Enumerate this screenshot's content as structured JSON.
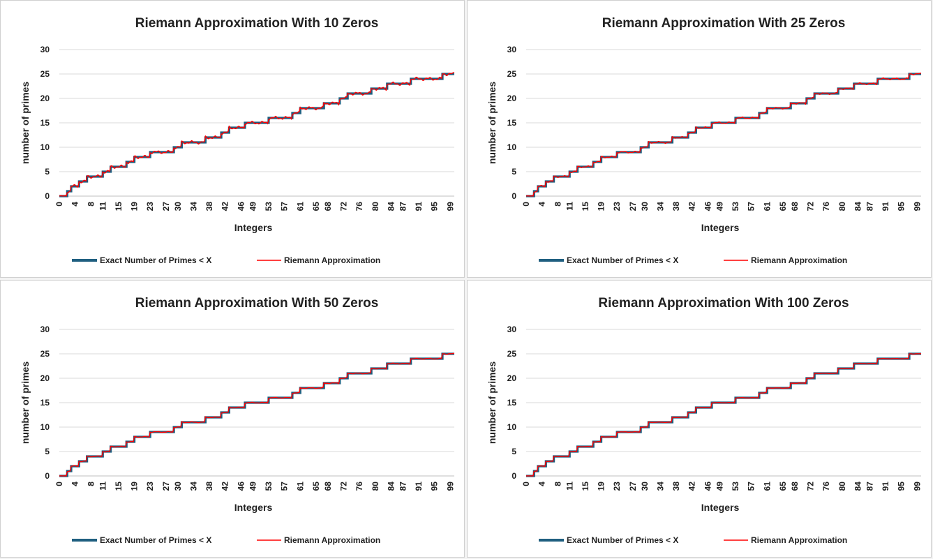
{
  "chart_data": [
    {
      "type": "line",
      "title": "Riemann Approximation With 10 Zeros",
      "xlabel": "Integers",
      "ylabel": "number of primes",
      "ylim": [
        0,
        30
      ],
      "yticks": [
        "0",
        "5",
        "10",
        "15",
        "20",
        "25",
        "30"
      ],
      "xlim": [
        0,
        100
      ],
      "xtick_labels": [
        "0",
        "4",
        "8",
        "11",
        "15",
        "19",
        "23",
        "27",
        "30",
        "34",
        "38",
        "42",
        "46",
        "49",
        "53",
        "57",
        "61",
        "65",
        "68",
        "72",
        "76",
        "80",
        "84",
        "87",
        "91",
        "95",
        "99"
      ],
      "grid": "horizontal",
      "legend_position": "bottom",
      "prime_x": [
        2,
        3,
        5,
        7,
        11,
        13,
        17,
        19,
        23,
        29,
        31,
        37,
        41,
        43,
        47,
        53,
        59,
        61,
        67,
        71,
        73,
        79,
        83,
        89,
        97
      ],
      "series": [
        {
          "name": "Exact Number of Primes < X",
          "color": "#1f5f80",
          "kind": "exact"
        },
        {
          "name": "Riemann Approximation",
          "color": "#ff0000",
          "kind": "approx",
          "noise": 0.35
        }
      ]
    },
    {
      "type": "line",
      "title": "Riemann Approximation With 25 Zeros",
      "xlabel": "Integers",
      "ylabel": "number of primes",
      "ylim": [
        0,
        30
      ],
      "yticks": [
        "0",
        "5",
        "10",
        "15",
        "20",
        "25",
        "30"
      ],
      "xlim": [
        0,
        100
      ],
      "xtick_labels": [
        "0",
        "4",
        "8",
        "11",
        "15",
        "19",
        "23",
        "27",
        "30",
        "34",
        "38",
        "42",
        "46",
        "49",
        "53",
        "57",
        "61",
        "65",
        "68",
        "72",
        "76",
        "80",
        "84",
        "87",
        "91",
        "95",
        "99"
      ],
      "grid": "horizontal",
      "legend_position": "bottom",
      "prime_x": [
        2,
        3,
        5,
        7,
        11,
        13,
        17,
        19,
        23,
        29,
        31,
        37,
        41,
        43,
        47,
        53,
        59,
        61,
        67,
        71,
        73,
        79,
        83,
        89,
        97
      ],
      "series": [
        {
          "name": "Exact Number of Primes < X",
          "color": "#1f5f80",
          "kind": "exact"
        },
        {
          "name": "Riemann Approximation",
          "color": "#ff0000",
          "kind": "approx",
          "noise": 0.2
        }
      ]
    },
    {
      "type": "line",
      "title": "Riemann Approximation With 50 Zeros",
      "xlabel": "Integers",
      "ylabel": "number of primes",
      "ylim": [
        0,
        30
      ],
      "yticks": [
        "0",
        "5",
        "10",
        "15",
        "20",
        "25",
        "30"
      ],
      "xlim": [
        0,
        100
      ],
      "xtick_labels": [
        "0",
        "4",
        "8",
        "11",
        "15",
        "19",
        "23",
        "27",
        "30",
        "34",
        "38",
        "42",
        "46",
        "49",
        "53",
        "57",
        "61",
        "65",
        "68",
        "72",
        "76",
        "80",
        "84",
        "87",
        "91",
        "95",
        "99"
      ],
      "grid": "horizontal",
      "legend_position": "bottom",
      "prime_x": [
        2,
        3,
        5,
        7,
        11,
        13,
        17,
        19,
        23,
        29,
        31,
        37,
        41,
        43,
        47,
        53,
        59,
        61,
        67,
        71,
        73,
        79,
        83,
        89,
        97
      ],
      "series": [
        {
          "name": "Exact Number of Primes < X",
          "color": "#1f5f80",
          "kind": "exact"
        },
        {
          "name": "Riemann Approximation",
          "color": "#ff0000",
          "kind": "approx",
          "noise": 0.12
        }
      ]
    },
    {
      "type": "line",
      "title": "Riemann Approximation With 100 Zeros",
      "xlabel": "Integers",
      "ylabel": "number of primes",
      "ylim": [
        0,
        30
      ],
      "yticks": [
        "0",
        "5",
        "10",
        "15",
        "20",
        "25",
        "30"
      ],
      "xlim": [
        0,
        100
      ],
      "xtick_labels": [
        "0",
        "4",
        "8",
        "11",
        "15",
        "19",
        "23",
        "27",
        "30",
        "34",
        "38",
        "42",
        "46",
        "49",
        "53",
        "57",
        "61",
        "65",
        "68",
        "72",
        "76",
        "80",
        "84",
        "87",
        "91",
        "95",
        "99"
      ],
      "grid": "horizontal",
      "legend_position": "bottom",
      "prime_x": [
        2,
        3,
        5,
        7,
        11,
        13,
        17,
        19,
        23,
        29,
        31,
        37,
        41,
        43,
        47,
        53,
        59,
        61,
        67,
        71,
        73,
        79,
        83,
        89,
        97
      ],
      "series": [
        {
          "name": "Exact Number of Primes < X",
          "color": "#1f5f80",
          "kind": "exact"
        },
        {
          "name": "Riemann Approximation",
          "color": "#ff0000",
          "kind": "approx",
          "noise": 0.06
        }
      ]
    }
  ]
}
